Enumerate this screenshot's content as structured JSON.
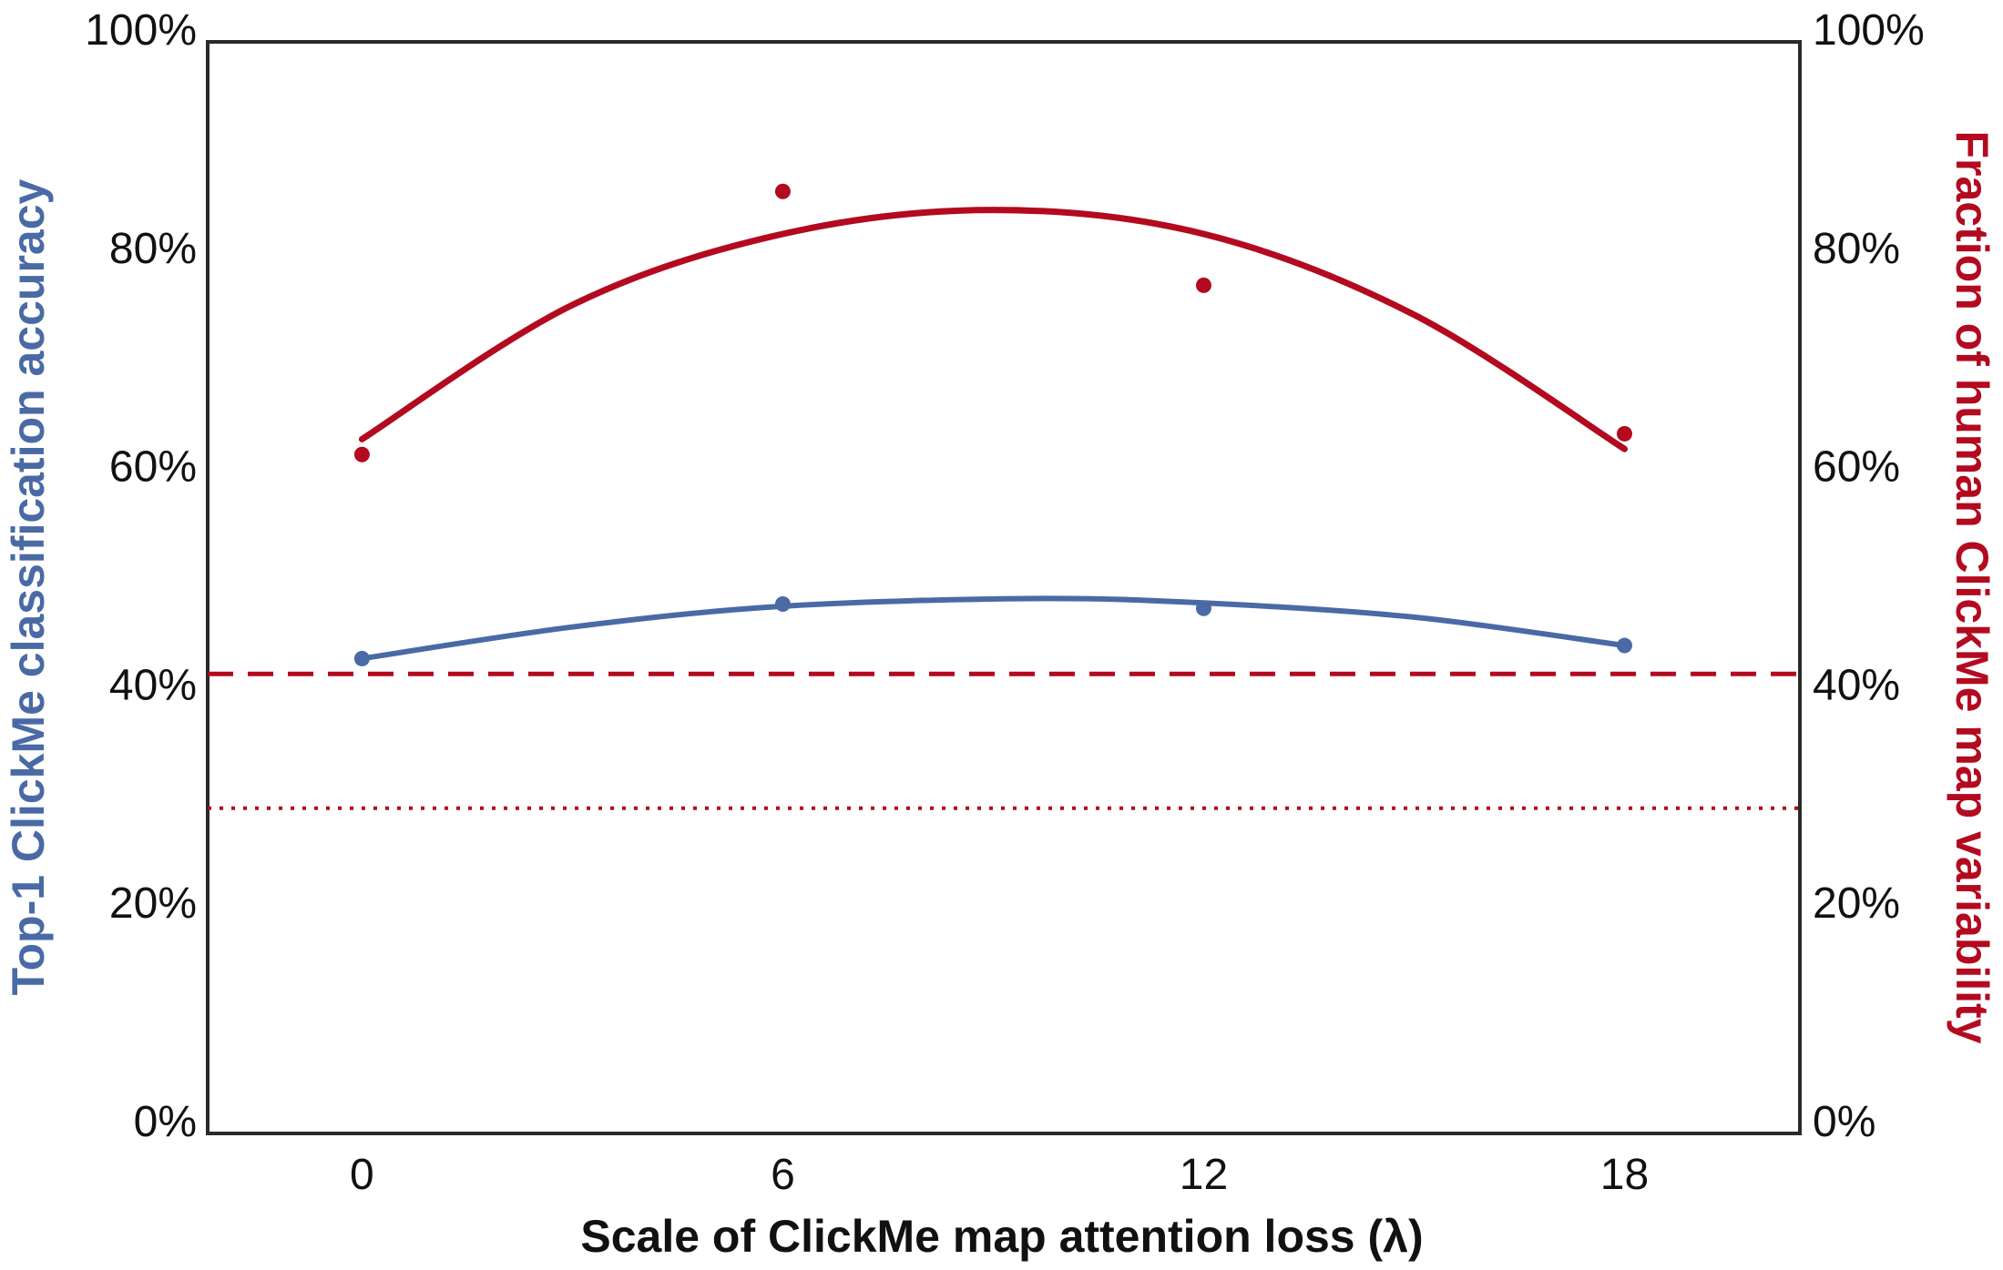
{
  "chart_data": {
    "type": "line",
    "xlabel": "Scale of ClickMe map attention loss (λ)",
    "ylabel_left": "Top-1 ClickMe classification accuracy",
    "ylabel_right": "Fraction of human ClickMe map variability",
    "x_ticks": [
      "0",
      "6",
      "12",
      "18"
    ],
    "y_ticks": [
      "0%",
      "20%",
      "40%",
      "60%",
      "80%",
      "100%"
    ],
    "xlim": [
      -2.2,
      20.5
    ],
    "ylim": [
      0,
      100
    ],
    "grid": false,
    "colors": {
      "accuracy": "#4a6aa5",
      "variability": "#b30a1f",
      "axis": "#2a2a2a"
    },
    "series": [
      {
        "key": "accuracy",
        "axis": "left",
        "points": [
          {
            "x": 0,
            "y": 43.5
          },
          {
            "x": 6,
            "y": 48.5
          },
          {
            "x": 12,
            "y": 48.1
          },
          {
            "x": 18,
            "y": 44.7
          }
        ],
        "fit": [
          {
            "x": 0,
            "y": 43.5
          },
          {
            "x": 3,
            "y": 46.4
          },
          {
            "x": 6,
            "y": 48.3
          },
          {
            "x": 9.5,
            "y": 49.0
          },
          {
            "x": 12,
            "y": 48.6
          },
          {
            "x": 15,
            "y": 47.3
          },
          {
            "x": 18,
            "y": 44.7
          }
        ]
      },
      {
        "key": "variability",
        "axis": "right",
        "points": [
          {
            "x": 0,
            "y": 62.2
          },
          {
            "x": 6,
            "y": 86.3
          },
          {
            "x": 12,
            "y": 77.7
          },
          {
            "x": 18,
            "y": 64.1
          }
        ],
        "fit": [
          {
            "x": 0,
            "y": 63.6
          },
          {
            "x": 3,
            "y": 75.9
          },
          {
            "x": 6,
            "y": 82.4
          },
          {
            "x": 9,
            "y": 84.6
          },
          {
            "x": 12,
            "y": 82.4
          },
          {
            "x": 15,
            "y": 75.0
          },
          {
            "x": 18,
            "y": 62.7
          }
        ]
      }
    ],
    "reference_lines": [
      {
        "key": "dashed",
        "y": 42.1,
        "style": "dashed",
        "color": "#b30a1f"
      },
      {
        "key": "dotted",
        "y": 29.8,
        "style": "dotted",
        "color": "#b30a1f"
      }
    ]
  }
}
